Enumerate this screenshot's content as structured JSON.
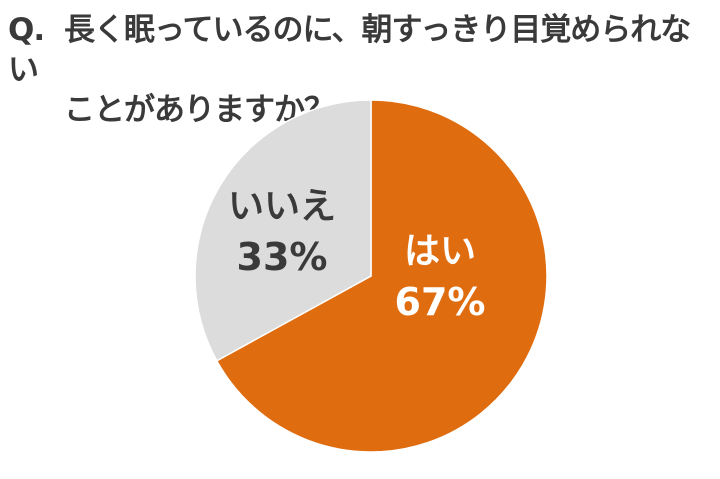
{
  "title": {
    "prefix": "Q.",
    "line1": "長く眠っているのに、朝すっきり目覚められない",
    "line2": "ことがありますか？"
  },
  "colors": {
    "yes": "#e06c10",
    "no": "#dcdcdc",
    "text_dark": "#3a3a3a",
    "text_light": "#ffffff"
  },
  "chart_data": {
    "type": "pie",
    "title": "Q. 長く眠っているのに、朝すっきり目覚められないことがありますか？",
    "categories": [
      "はい",
      "いいえ"
    ],
    "values": [
      67,
      33
    ],
    "unit": "%",
    "start_angle": "12 o'clock, clockwise",
    "labels_inside": true,
    "legend": "none"
  },
  "labels": {
    "yes": {
      "name": "はい",
      "pct": "67%"
    },
    "no": {
      "name": "いいえ",
      "pct": "33%"
    }
  }
}
